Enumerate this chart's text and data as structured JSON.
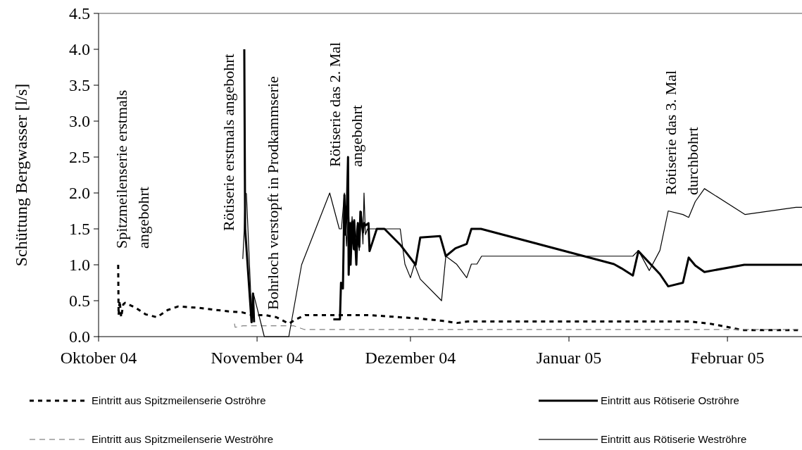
{
  "chart_data": {
    "type": "line",
    "ylabel": "Schüttung Bergwasser [l/s]",
    "xlim": [
      "2004-10-01",
      "2005-02-15T14:00"
    ],
    "xticks": [
      {
        "value": "2004-10-01",
        "label": "Oktober 04"
      },
      {
        "value": "2004-11-01",
        "label": "November 04"
      },
      {
        "value": "2004-12-01",
        "label": "Dezember 04"
      },
      {
        "value": "2005-01-01",
        "label": "Januar 05"
      },
      {
        "value": "2005-02-01",
        "label": "Februar 05"
      }
    ],
    "ylim": [
      0,
      4.5
    ],
    "yticks": [
      {
        "value": 0,
        "label": "0.0"
      },
      {
        "value": 0.5,
        "label": "0.5"
      },
      {
        "value": 1,
        "label": "1.0"
      },
      {
        "value": 1.5,
        "label": "1.5"
      },
      {
        "value": 2,
        "label": "2.0"
      },
      {
        "value": 2.5,
        "label": "2.5"
      },
      {
        "value": 3,
        "label": "3.0"
      },
      {
        "value": 3.5,
        "label": "3.5"
      },
      {
        "value": 4,
        "label": "4.0"
      },
      {
        "value": 4.5,
        "label": "4.5"
      }
    ],
    "grid": false,
    "legend": "bottom",
    "marker": "none",
    "series": [
      {
        "name": "Eintritt aus Spitzmeilenserie Oströhre",
        "color": "#000000",
        "line_style": "dotted",
        "x": [
          "2004-10-04T20:00",
          "2004-10-04T22:00",
          "2004-10-05T03:00",
          "2004-10-05T10:00",
          "2004-10-05T20:00",
          "2004-10-06T05:00",
          "2004-10-08T07:00",
          "2004-10-10T05:00",
          "2004-10-12T10:00",
          "2004-10-14T12:00",
          "2004-10-16T14:00",
          "2004-10-20T17:00",
          "2004-10-26T12:00",
          "2004-10-29",
          "2004-10-31",
          "2004-11-02T14:00",
          "2004-11-04T19:00",
          "2004-11-07T05:00",
          "2004-11-08T14:00",
          "2004-11-10T10:00",
          "2004-11-22T19:00",
          "2004-12-03T02:00",
          "2004-12-07T05:00",
          "2004-12-10T02:00",
          "2004-12-12T05:00",
          "2005-01-24T14:00",
          "2005-01-28T14:00",
          "2005-01-31T14:00",
          "2005-02-04",
          "2005-02-15T14:00"
        ],
        "values": [
          1.0,
          0.3,
          0.5,
          0.27,
          0.45,
          0.47,
          0.4,
          0.31,
          0.27,
          0.37,
          0.42,
          0.4,
          0.35,
          0.34,
          0.3,
          0.3,
          0.27,
          0.18,
          0.24,
          0.3,
          0.3,
          0.25,
          0.22,
          0.19,
          0.21,
          0.21,
          0.18,
          0.14,
          0.09,
          0.09
        ]
      },
      {
        "name": "Eintritt aus Spitzmeilenserie Weströhre",
        "color": "#808080",
        "line_style": "dashed",
        "x": [
          "2004-10-27T14:00",
          "2004-10-27T17:00",
          "2004-10-29T05:00",
          "2004-11-08T05:00",
          "2004-11-10T05:00",
          "2005-02-15T14:00"
        ],
        "values": [
          0.18,
          0.13,
          0.15,
          0.15,
          0.1,
          0.1
        ]
      },
      {
        "name": "Eintritt aus Rötiserie Oströhre",
        "color": "#000000",
        "line_style": "solid",
        "x": [
          "2004-10-29T12:00",
          "2004-10-29T16:00",
          "2004-10-30T22:00",
          "2004-10-31T05:00",
          "2004-10-31T10:00",
          "2004-11-05",
          "2004-11-15T22:00",
          "2004-11-17T05:00",
          "2004-11-17T10:00",
          "2004-11-17T19:00",
          "2004-11-18T02:00",
          "2004-11-18T07:00",
          "2004-11-18T14:00",
          "2004-11-18T19:00",
          "2004-11-18T22:00",
          "2004-11-19T05:00",
          "2004-11-19T07:00",
          "2004-11-19T14:00",
          "2004-11-19T22:00",
          "2004-11-20T00:00",
          "2004-11-20T10:00",
          "2004-11-20T17:00",
          "2004-11-21T00:00",
          "2004-11-21T05:00",
          "2004-11-21T17:00",
          "2004-11-21T22:00",
          "2004-11-22T07:00",
          "2004-11-22T19:00",
          "2004-11-23T00:00",
          "2004-11-24T10:00",
          "2004-11-25T22:00",
          "2004-11-29T00:00",
          "2004-12-02T00:00",
          "2004-12-02T22:00",
          "2004-12-06T19:00",
          "2004-12-07T22:00",
          "2004-12-09T19:00",
          "2004-12-12T00:00",
          "2004-12-12T22:00",
          "2004-12-14T19:00",
          "2005-01-09T19:00",
          "2005-01-11T07:00",
          "2005-01-13T12:00",
          "2005-01-14T14:00",
          "2005-01-18T19:00",
          "2005-01-20T10:00",
          "2005-01-23T07:00",
          "2005-01-24T10:00",
          "2005-01-25T17:00",
          "2005-01-27T12:00",
          "2005-02-04T07:00",
          "2005-02-15T14:00"
        ],
        "values": [
          4.0,
          1.5,
          0.2,
          0.6,
          0.2,
          null,
          0.24,
          0.24,
          0.75,
          0.67,
          1.97,
          1.42,
          1.85,
          2.5,
          0.86,
          1.58,
          1.0,
          1.6,
          1.22,
          1.62,
          1.0,
          1.58,
          1.25,
          1.74,
          1.45,
          1.58,
          1.55,
          1.58,
          1.19,
          1.5,
          1.5,
          1.28,
          1.0,
          1.38,
          1.4,
          1.12,
          1.23,
          1.29,
          1.5,
          1.5,
          1.01,
          0.95,
          0.85,
          1.19,
          0.87,
          0.7,
          0.75,
          1.1,
          0.99,
          0.9,
          1.0,
          1.0
        ]
      },
      {
        "name": "Eintritt aus Rötiserie Weströhre",
        "color": "#000000",
        "line_style": "solid",
        "x": [
          "2004-10-29T05:00",
          "2004-10-29T12:00",
          "2004-10-29T16:00",
          "2004-10-29T22:00",
          "2004-10-31T00:00",
          "2004-10-31T07:00",
          "2004-11-02T10:00",
          "2004-11-07T05:00",
          "2004-11-09T17:00",
          "2004-11-15T05:00",
          "2004-11-17T02:00",
          "2004-11-17T12:00",
          "2004-11-18T02:00",
          "2004-11-18T12:00",
          "2004-11-18T22:00",
          "2004-11-19T05:00",
          "2004-11-19T14:00",
          "2004-11-20T00:00",
          "2004-11-20T14:00",
          "2004-11-21T00:00",
          "2004-11-21T10:00",
          "2004-11-21T17:00",
          "2004-11-21T22:00",
          "2004-11-22T05:00",
          "2004-11-22T14:00",
          "2004-11-29T00:00",
          "2004-11-29T22:00",
          "2004-12-01T00:00",
          "2004-12-01T19:00",
          "2004-12-02T22:00",
          "2004-12-07T02:00",
          "2004-12-07T22:00",
          "2004-12-10T00:00",
          "2004-12-12T00:00",
          "2004-12-12T22:00",
          "2004-12-14T00:00",
          "2004-12-14T22:00",
          "2005-01-13T12:00",
          "2005-01-14T14:00",
          "2005-01-16T17:00",
          "2005-01-18T19:00",
          "2005-01-20T10:00",
          "2005-01-23T07:00",
          "2005-01-24T10:00",
          "2005-01-25T17:00",
          "2005-01-27T12:00",
          "2005-02-04T10:00",
          "2005-02-14T10:00",
          "2005-02-15T14:00"
        ],
        "values": [
          1.08,
          1.5,
          2.0,
          1.99,
          0.2,
          0.6,
          0.0,
          0.0,
          1.0,
          2.0,
          1.5,
          1.5,
          2.0,
          1.26,
          1.74,
          1.2,
          1.67,
          1.2,
          1.55,
          1.2,
          1.74,
          1.29,
          2.0,
          1.42,
          1.5,
          1.5,
          1.01,
          0.82,
          1.01,
          0.8,
          0.5,
          1.12,
          1.01,
          0.82,
          1.01,
          1.01,
          1.12,
          1.12,
          1.2,
          0.92,
          1.2,
          1.75,
          1.7,
          1.66,
          1.88,
          2.06,
          1.7,
          1.8,
          1.8
        ]
      }
    ],
    "annotations": [
      "Spitzmeilenserie erstmals\nangebohrt",
      "Rötiserie erstmals angebohrt",
      "Bohrloch verstopft in Prodkammserie",
      "Rötiserie das 2. Mal\nangebohrt",
      "Rötiserie das 3. Mal\ndurchbohrt"
    ]
  }
}
